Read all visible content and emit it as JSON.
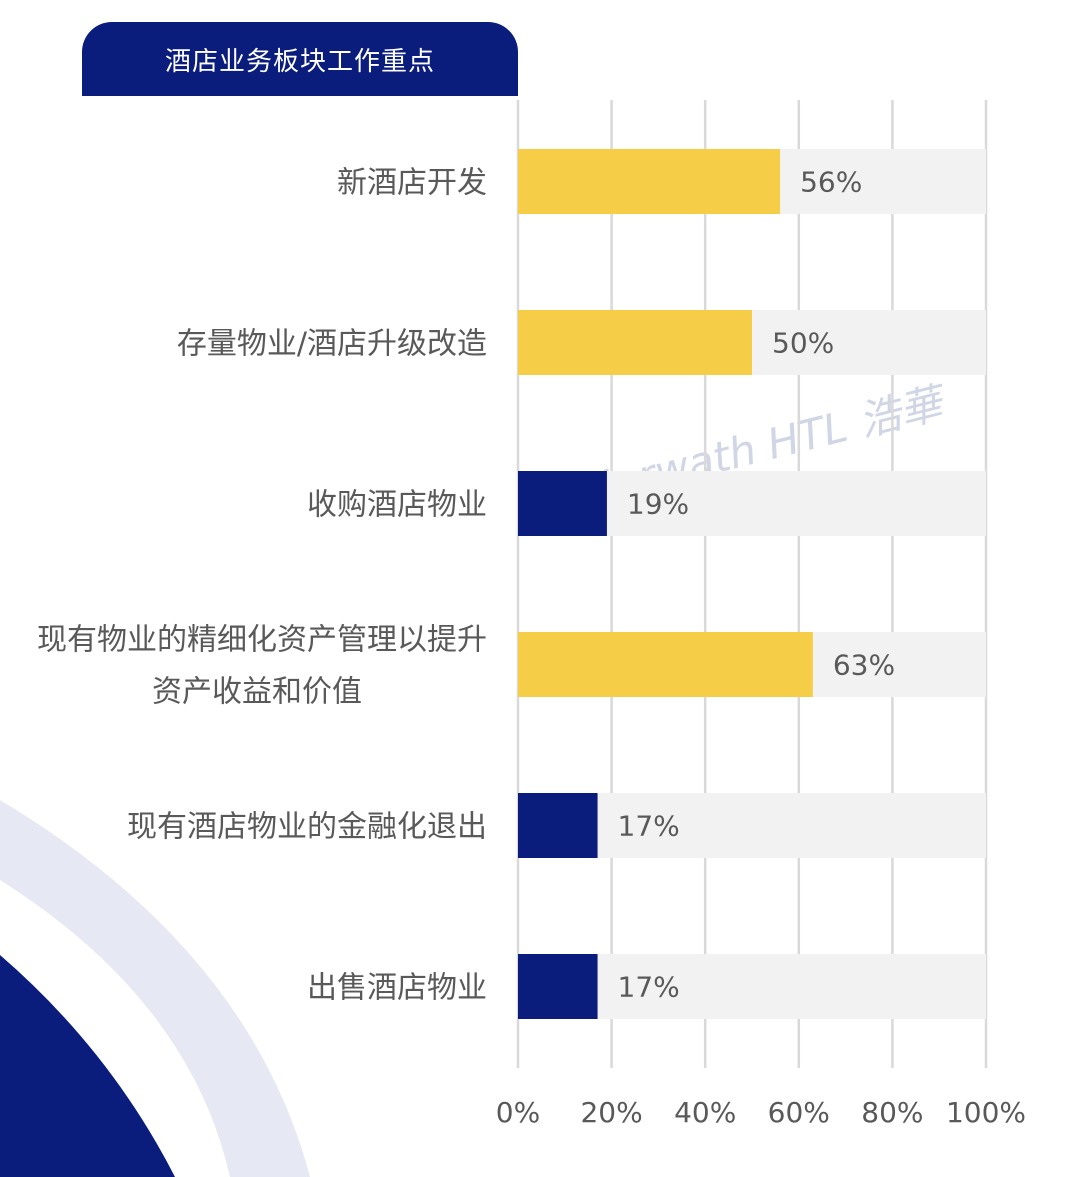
{
  "chart_data": {
    "type": "bar",
    "orientation": "horizontal",
    "title": "酒店业务板块工作重点",
    "categories": [
      "新酒店开发",
      "存量物业/酒店升级改造",
      "收购酒店物业",
      "现有物业的精细化资产管理以提升资产收益和价值",
      "现有酒店物业的金融化退出",
      "出售酒店物业"
    ],
    "category_lines": [
      [
        "新酒店开发"
      ],
      [
        "存量物业/酒店升级改造"
      ],
      [
        "收购酒店物业"
      ],
      [
        "现有物业的精细化资产管理以提升",
        "资产收益和价值"
      ],
      [
        "现有酒店物业的金融化退出"
      ],
      [
        "出售酒店物业"
      ]
    ],
    "values": [
      56,
      50,
      19,
      63,
      17,
      17
    ],
    "value_labels": [
      "56%",
      "50%",
      "19%",
      "63%",
      "17%",
      "17%"
    ],
    "xlim": [
      0,
      100
    ],
    "xticks": [
      0,
      20,
      40,
      60,
      80,
      100
    ],
    "xtick_labels": [
      "0%",
      "20%",
      "40%",
      "60%",
      "80%",
      "100%"
    ],
    "grid": "vertical",
    "legend": "none",
    "colors": {
      "high": "#F6CD46",
      "low": "#0A1C7C",
      "track": "#F2F2F2",
      "grid": "#D9D9D9",
      "text": "#595959",
      "title_bg": "#0A1C7C",
      "decor_light": "#E6E8F3"
    }
  },
  "watermark": {
    "text": "Horwath HTL 浩華"
  }
}
